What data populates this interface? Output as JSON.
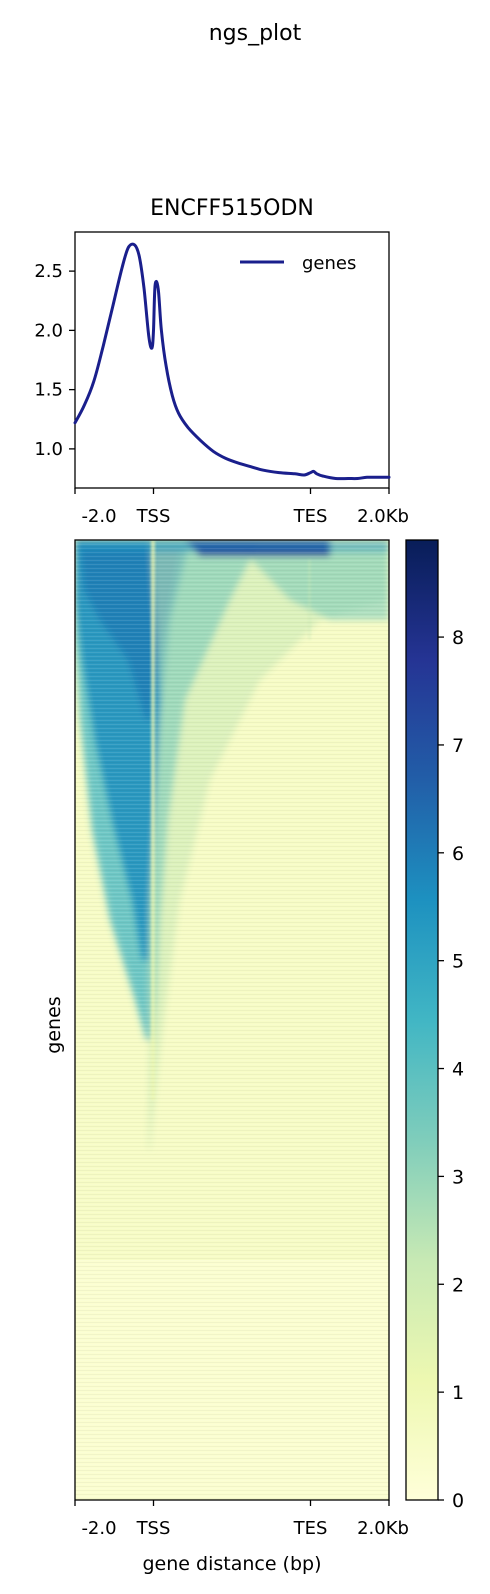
{
  "figure_title": "ngs_plot",
  "colors": {
    "profile_line": "#1a1f8c",
    "colormap": [
      "#ffffd9",
      "#edf8b1",
      "#c7e9b4",
      "#7fcdbb",
      "#41b6c4",
      "#1d91c0",
      "#225ea8",
      "#253494",
      "#081d58"
    ]
  },
  "chart_data": [
    {
      "type": "line",
      "title": "ENCFF515ODN",
      "xlabel": "",
      "ylabel": "",
      "x_ticks": [
        "-2.0",
        "TSS",
        "TES",
        "2.0Kb"
      ],
      "ylim": [
        0.67,
        2.83
      ],
      "y_ticks": [
        "1.0",
        "1.5",
        "2.0",
        "2.5"
      ],
      "y_tick_values": [
        1.0,
        1.5,
        2.0,
        2.5
      ],
      "grid": false,
      "legend": "top-right",
      "series": [
        {
          "name": "genes",
          "x": [
            0,
            0.03,
            0.06,
            0.09,
            0.12,
            0.15,
            0.17,
            0.19,
            0.205,
            0.22,
            0.235,
            0.245,
            0.25,
            0.255,
            0.265,
            0.275,
            0.29,
            0.31,
            0.33,
            0.36,
            0.4,
            0.44,
            0.48,
            0.52,
            0.56,
            0.6,
            0.65,
            0.7,
            0.73,
            0.75,
            0.76,
            0.77,
            0.79,
            0.83,
            0.87,
            0.9,
            0.93,
            0.97,
            1.0
          ],
          "y": [
            1.22,
            1.37,
            1.57,
            1.87,
            2.2,
            2.53,
            2.7,
            2.72,
            2.62,
            2.35,
            1.95,
            1.85,
            2.0,
            2.38,
            2.35,
            2.0,
            1.7,
            1.45,
            1.3,
            1.18,
            1.07,
            0.98,
            0.92,
            0.88,
            0.85,
            0.82,
            0.8,
            0.79,
            0.78,
            0.8,
            0.81,
            0.79,
            0.77,
            0.75,
            0.75,
            0.75,
            0.76,
            0.76,
            0.76
          ]
        }
      ]
    },
    {
      "type": "heatmap",
      "xlabel": "gene distance (bp)",
      "ylabel": "genes",
      "x_ticks": [
        "-2.0",
        "TSS",
        "TES",
        "2.0Kb"
      ],
      "colorbar": {
        "range": [
          0,
          8.9
        ],
        "ticks": [
          "0",
          "1",
          "2",
          "3",
          "4",
          "5",
          "6",
          "7",
          "8"
        ],
        "tick_values": [
          0,
          1,
          2,
          3,
          4,
          5,
          6,
          7,
          8
        ]
      }
    }
  ]
}
